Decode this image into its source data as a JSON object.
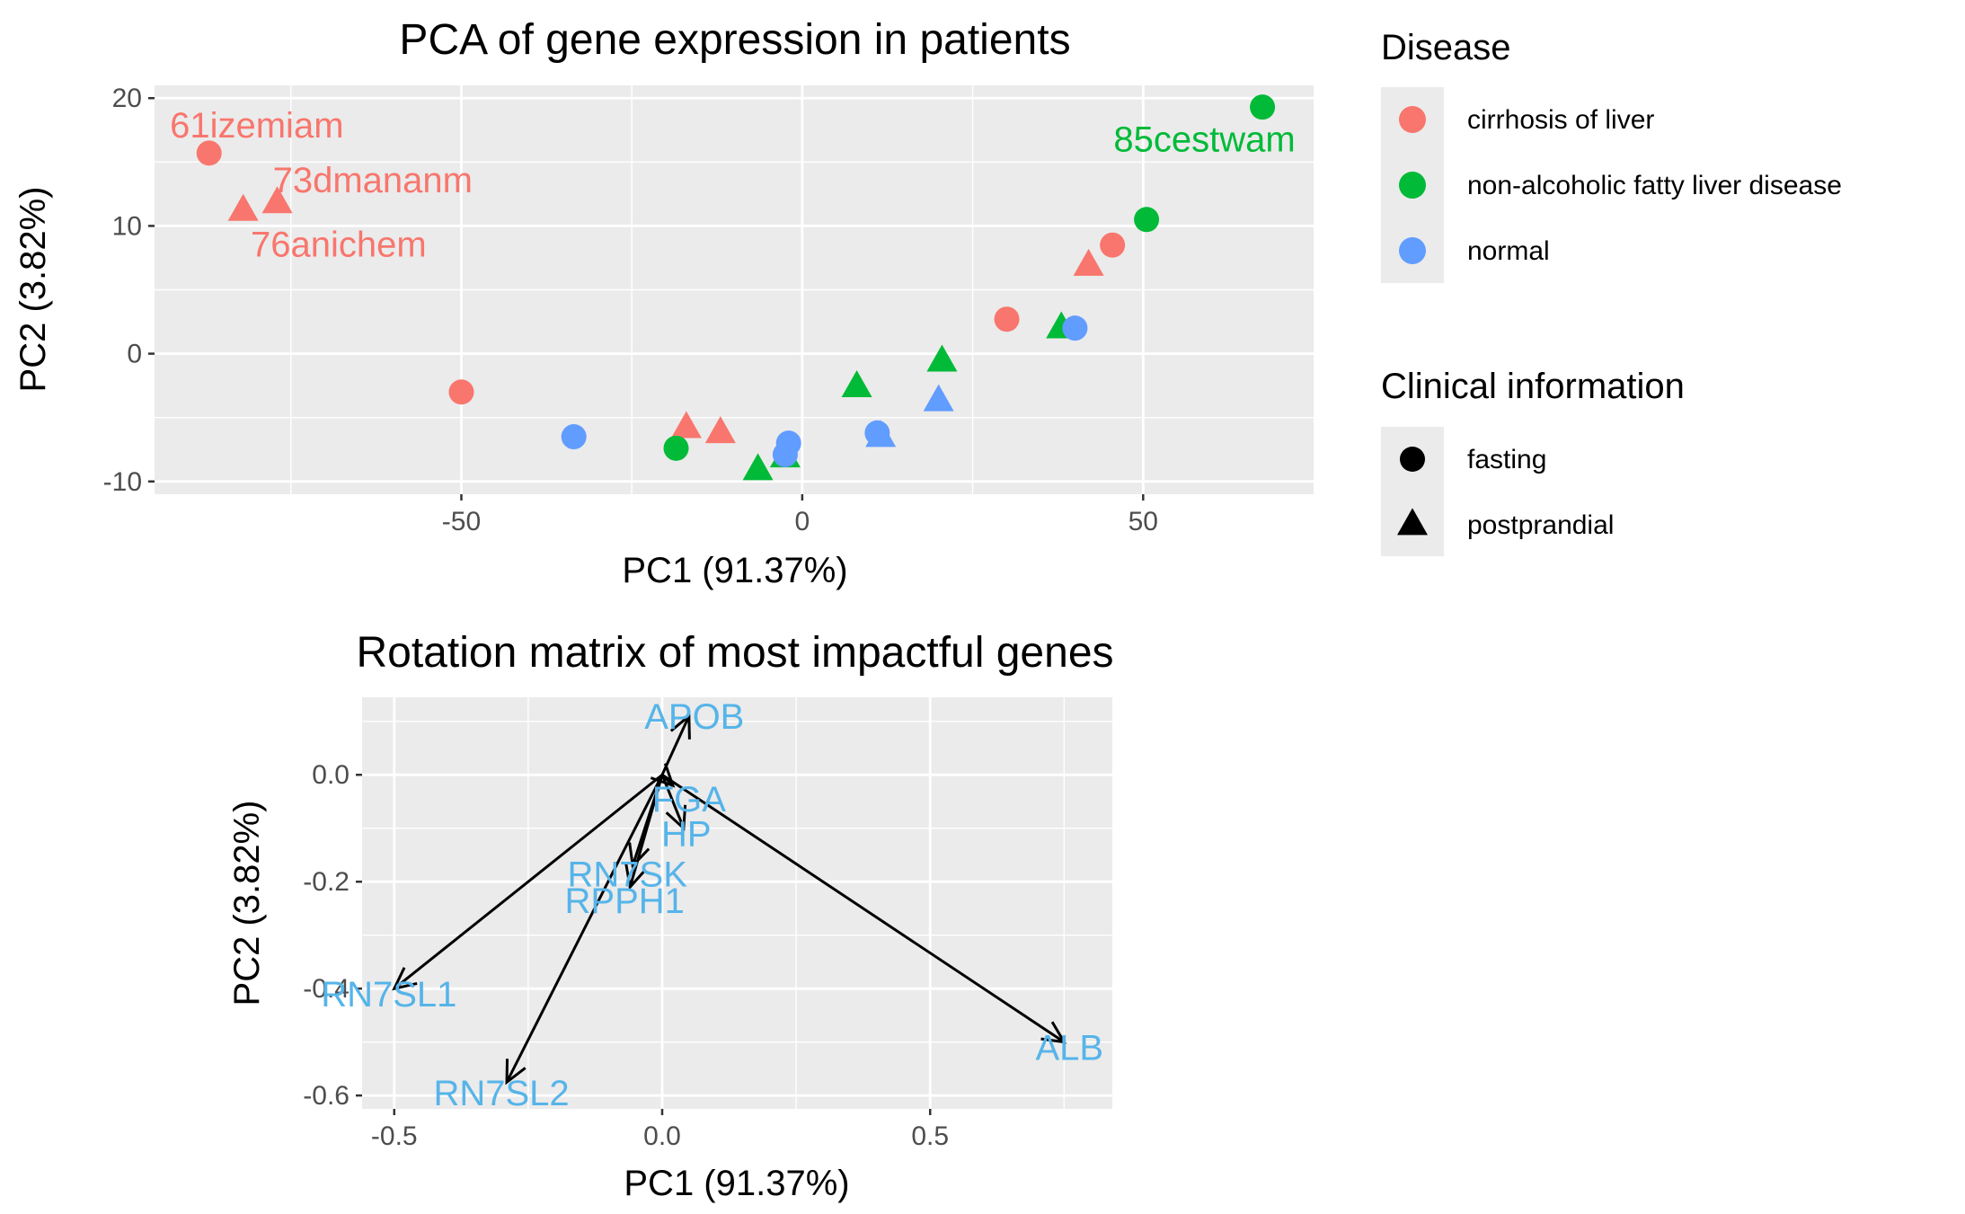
{
  "colors": {
    "cirrhosis": "#f8766d",
    "nafld": "#00ba38",
    "normal": "#619cff",
    "panel_bg": "#ebebeb",
    "gene_label": "#56b4e9"
  },
  "legend": {
    "disease_title": "Disease",
    "disease_items": [
      {
        "label": "cirrhosis of liver",
        "color": "#f8766d"
      },
      {
        "label": "non-alcoholic fatty liver disease",
        "color": "#00ba38"
      },
      {
        "label": "normal",
        "color": "#619cff"
      }
    ],
    "clinical_title": "Clinical information",
    "clinical_items": [
      {
        "label": "fasting",
        "shape": "circle"
      },
      {
        "label": "postprandial",
        "shape": "triangle"
      }
    ]
  },
  "chart_data": [
    {
      "type": "scatter",
      "title": "PCA of gene expression in patients",
      "xlabel": "PC1 (91.37%)",
      "ylabel": "PC2 (3.82%)",
      "xlim": [
        -95,
        75
      ],
      "ylim": [
        -11,
        21
      ],
      "xticks": [
        -50,
        0,
        50
      ],
      "yticks": [
        -10,
        0,
        10,
        20
      ],
      "xtick_labels": [
        "-50",
        "0",
        "50"
      ],
      "ytick_labels": [
        "-10",
        "0",
        "10",
        "20"
      ],
      "grid": true,
      "points": [
        {
          "x": -87,
          "y": 15.7,
          "disease": "cirrhosis",
          "shape": "circle"
        },
        {
          "x": -82,
          "y": 11.2,
          "disease": "cirrhosis",
          "shape": "triangle"
        },
        {
          "x": -77,
          "y": 11.8,
          "disease": "cirrhosis",
          "shape": "triangle"
        },
        {
          "x": -50,
          "y": -3,
          "disease": "cirrhosis",
          "shape": "circle"
        },
        {
          "x": -17,
          "y": -5.8,
          "disease": "cirrhosis",
          "shape": "triangle"
        },
        {
          "x": -12,
          "y": -6.2,
          "disease": "cirrhosis",
          "shape": "triangle"
        },
        {
          "x": 30,
          "y": 2.7,
          "disease": "cirrhosis",
          "shape": "circle"
        },
        {
          "x": 42,
          "y": 6.9,
          "disease": "cirrhosis",
          "shape": "triangle"
        },
        {
          "x": 45.5,
          "y": 8.5,
          "disease": "cirrhosis",
          "shape": "circle"
        },
        {
          "x": -18.5,
          "y": -7.4,
          "disease": "nafld",
          "shape": "circle"
        },
        {
          "x": -6.5,
          "y": -9.1,
          "disease": "nafld",
          "shape": "triangle"
        },
        {
          "x": -2.5,
          "y": -8.1,
          "disease": "nafld",
          "shape": "triangle"
        },
        {
          "x": 8,
          "y": -2.6,
          "disease": "nafld",
          "shape": "triangle"
        },
        {
          "x": 20.5,
          "y": -0.6,
          "disease": "nafld",
          "shape": "triangle"
        },
        {
          "x": 38,
          "y": 2.0,
          "disease": "nafld",
          "shape": "triangle"
        },
        {
          "x": 50.5,
          "y": 10.5,
          "disease": "nafld",
          "shape": "circle"
        },
        {
          "x": 67.5,
          "y": 19.3,
          "disease": "nafld",
          "shape": "circle"
        },
        {
          "x": -33.5,
          "y": -6.5,
          "disease": "normal",
          "shape": "circle"
        },
        {
          "x": -2,
          "y": -7.0,
          "disease": "normal",
          "shape": "circle"
        },
        {
          "x": -2.5,
          "y": -7.9,
          "disease": "normal",
          "shape": "circle"
        },
        {
          "x": 11,
          "y": -6.2,
          "disease": "normal",
          "shape": "circle"
        },
        {
          "x": 11.5,
          "y": -6.5,
          "disease": "normal",
          "shape": "triangle"
        },
        {
          "x": 20,
          "y": -3.7,
          "disease": "normal",
          "shape": "triangle"
        },
        {
          "x": 40,
          "y": 2.0,
          "disease": "normal",
          "shape": "circle"
        }
      ],
      "annotations": [
        {
          "text": "61izemiam",
          "x": -80,
          "y": 17.9,
          "disease": "cirrhosis"
        },
        {
          "text": "73dmananm",
          "x": -63,
          "y": 13.6,
          "disease": "cirrhosis"
        },
        {
          "text": "76anichem",
          "x": -68,
          "y": 8.6,
          "disease": "cirrhosis"
        },
        {
          "text": "85cestwam",
          "x": 59,
          "y": 16.8,
          "disease": "nafld"
        }
      ]
    },
    {
      "type": "scatter",
      "title": "Rotation matrix of most impactful genes",
      "xlabel": "PC1 (91.37%)",
      "ylabel": "PC2 (3.82%)",
      "xlim": [
        -0.56,
        0.84
      ],
      "ylim": [
        -0.625,
        0.145
      ],
      "xticks": [
        -0.5,
        0,
        0.5
      ],
      "yticks": [
        -0.6,
        -0.4,
        -0.2,
        0
      ],
      "xtick_labels": [
        "-0.5",
        "0.0",
        "0.5"
      ],
      "ytick_labels": [
        "-0.6",
        "-0.4",
        "-0.2",
        "0.0"
      ],
      "grid": true,
      "arrows": [
        {
          "gene": "APOB",
          "x": 0.05,
          "y": 0.11
        },
        {
          "gene": "FGA",
          "x": 0.02,
          "y": -0.02
        },
        {
          "gene": "HP",
          "x": 0.04,
          "y": -0.1
        },
        {
          "gene": "RN7SK",
          "x": -0.055,
          "y": -0.17
        },
        {
          "gene": "RPPH1",
          "x": -0.06,
          "y": -0.21
        },
        {
          "gene": "RN7SL1",
          "x": -0.5,
          "y": -0.4
        },
        {
          "gene": "RN7SL2",
          "x": -0.29,
          "y": -0.575
        },
        {
          "gene": "ALB",
          "x": 0.75,
          "y": -0.5
        }
      ],
      "labels": [
        {
          "text": "APOB",
          "x": 0.06,
          "y": 0.11
        },
        {
          "text": "FGA",
          "x": 0.05,
          "y": -0.045
        },
        {
          "text": "HP",
          "x": 0.045,
          "y": -0.11
        },
        {
          "text": "RN7SK",
          "x": -0.065,
          "y": -0.185
        },
        {
          "text": "RPPH1",
          "x": -0.07,
          "y": -0.235
        },
        {
          "text": "RN7SL1",
          "x": -0.51,
          "y": -0.41
        },
        {
          "text": "RN7SL2",
          "x": -0.3,
          "y": -0.595
        },
        {
          "text": "ALB",
          "x": 0.76,
          "y": -0.51
        }
      ]
    }
  ]
}
